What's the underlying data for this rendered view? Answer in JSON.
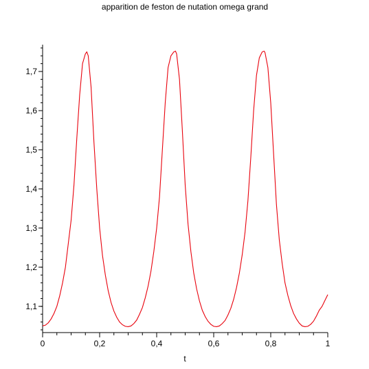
{
  "chart_data": {
    "type": "line",
    "title": "apparition de feston de nutation omega grand",
    "xlabel": "t",
    "ylabel": "",
    "xlim": [
      0,
      1
    ],
    "ylim": [
      1.033,
      1.765
    ],
    "x_ticks": [
      {
        "value": 0,
        "label": "0"
      },
      {
        "value": 0.2,
        "label": "0,2"
      },
      {
        "value": 0.4,
        "label": "0,4"
      },
      {
        "value": 0.6,
        "label": "0,6"
      },
      {
        "value": 0.8,
        "label": "0,8"
      },
      {
        "value": 1,
        "label": "1"
      }
    ],
    "x_minor_step": 0.05,
    "y_ticks": [
      {
        "value": 1.1,
        "label": "1,1"
      },
      {
        "value": 1.2,
        "label": "1,2"
      },
      {
        "value": 1.3,
        "label": "1,3"
      },
      {
        "value": 1.4,
        "label": "1,4"
      },
      {
        "value": 1.5,
        "label": "1,5"
      },
      {
        "value": 1.6,
        "label": "1,6"
      },
      {
        "value": 1.7,
        "label": "1,7"
      }
    ],
    "y_minor_step": 0.02,
    "grid": false,
    "series": [
      {
        "color": "#e8000b",
        "x": [
          0,
          0.01,
          0.02,
          0.03,
          0.04,
          0.05,
          0.06,
          0.07,
          0.08,
          0.09,
          0.1,
          0.11,
          0.12,
          0.13,
          0.14,
          0.15,
          0.155,
          0.16,
          0.17,
          0.18,
          0.19,
          0.2,
          0.21,
          0.22,
          0.23,
          0.24,
          0.25,
          0.26,
          0.27,
          0.28,
          0.29,
          0.3,
          0.31,
          0.32,
          0.33,
          0.34,
          0.35,
          0.36,
          0.37,
          0.38,
          0.39,
          0.4,
          0.41,
          0.42,
          0.43,
          0.44,
          0.45,
          0.46,
          0.466,
          0.47,
          0.48,
          0.49,
          0.5,
          0.51,
          0.52,
          0.53,
          0.54,
          0.55,
          0.56,
          0.57,
          0.58,
          0.59,
          0.6,
          0.61,
          0.62,
          0.63,
          0.64,
          0.65,
          0.66,
          0.67,
          0.68,
          0.69,
          0.7,
          0.71,
          0.72,
          0.73,
          0.74,
          0.75,
          0.76,
          0.77,
          0.777,
          0.78,
          0.79,
          0.8,
          0.81,
          0.82,
          0.83,
          0.84,
          0.85,
          0.86,
          0.87,
          0.88,
          0.89,
          0.9,
          0.91,
          0.92,
          0.93,
          0.94,
          0.95,
          0.96,
          0.97,
          0.98,
          0.99,
          1.0
        ],
        "y": [
          1.05,
          1.052,
          1.058,
          1.068,
          1.082,
          1.1,
          1.127,
          1.16,
          1.2,
          1.26,
          1.32,
          1.41,
          1.53,
          1.64,
          1.72,
          1.745,
          1.75,
          1.74,
          1.66,
          1.52,
          1.4,
          1.3,
          1.23,
          1.18,
          1.14,
          1.11,
          1.088,
          1.072,
          1.06,
          1.053,
          1.049,
          1.048,
          1.05,
          1.056,
          1.065,
          1.08,
          1.097,
          1.122,
          1.152,
          1.19,
          1.24,
          1.3,
          1.38,
          1.5,
          1.62,
          1.71,
          1.74,
          1.75,
          1.752,
          1.745,
          1.68,
          1.55,
          1.41,
          1.31,
          1.24,
          1.185,
          1.145,
          1.114,
          1.09,
          1.074,
          1.062,
          1.054,
          1.049,
          1.048,
          1.05,
          1.056,
          1.064,
          1.078,
          1.095,
          1.118,
          1.148,
          1.185,
          1.232,
          1.29,
          1.37,
          1.48,
          1.6,
          1.69,
          1.735,
          1.75,
          1.752,
          1.748,
          1.71,
          1.62,
          1.49,
          1.36,
          1.27,
          1.21,
          1.16,
          1.128,
          1.102,
          1.082,
          1.068,
          1.057,
          1.05,
          1.048,
          1.049,
          1.054,
          1.062,
          1.075,
          1.09,
          1.1,
          1.115,
          1.13
        ]
      }
    ]
  }
}
